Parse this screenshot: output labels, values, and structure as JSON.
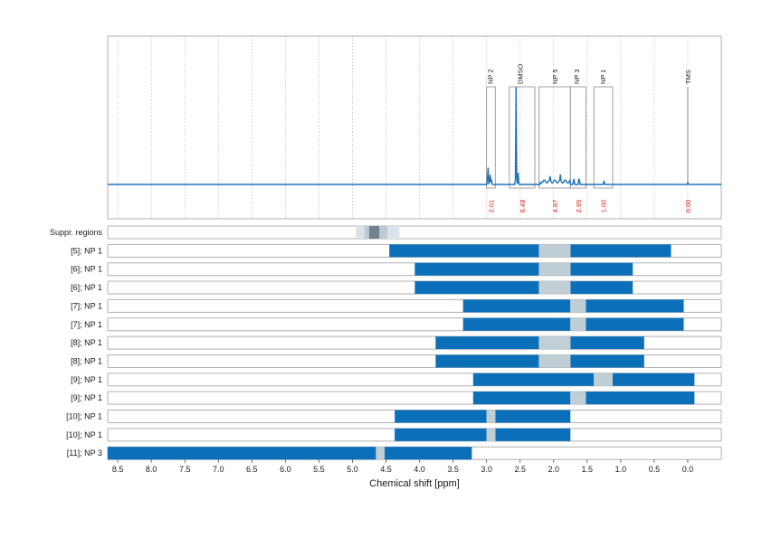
{
  "colors": {
    "spectrum": "#1a72bb",
    "bar": "#0b6fba",
    "suppr_light": "#dbe3ea",
    "suppr_mid": "#bccbd3",
    "suppr_dark": "#6f828e",
    "gap": "#c0ced5",
    "frame": "#b0b0b0",
    "grid": "#bfbfbf",
    "tms_line": "#999999",
    "integral_text": "#e0201a"
  },
  "chart_data": {
    "type": "spectrum_with_range_bars",
    "xlabel": "Chemical shift [ppm]",
    "x_axis_reversed": true,
    "xlim": [
      8.65,
      -0.5
    ],
    "ticks": [
      8.5,
      8.0,
      7.5,
      7.0,
      6.5,
      6.0,
      5.5,
      5.0,
      4.5,
      4.0,
      3.5,
      3.0,
      2.5,
      2.0,
      1.5,
      1.0,
      0.5,
      0.0
    ],
    "tick_labels": [
      "8.5",
      "8.0",
      "7.5",
      "7.0",
      "6.5",
      "6.0",
      "5.5",
      "5.0",
      "4.5",
      "4.0",
      "3.5",
      "3.0",
      "2.5",
      "2.0",
      "1.5",
      "1.0",
      "0.5",
      "0.0"
    ],
    "grid": true,
    "spectrum_peaks": [
      {
        "ppm": 2.98,
        "height": 0.22
      },
      {
        "ppm": 2.95,
        "height": 0.14
      },
      {
        "ppm": 2.93,
        "height": 0.06
      },
      {
        "ppm": 2.56,
        "height": 1.0
      },
      {
        "ppm": 2.53,
        "height": 0.12
      },
      {
        "ppm": 2.05,
        "height": 0.05
      },
      {
        "ppm": 1.9,
        "height": 0.06
      },
      {
        "ppm": 1.7,
        "height": 0.09
      },
      {
        "ppm": 1.62,
        "height": 0.1
      },
      {
        "ppm": 1.25,
        "height": 0.04
      },
      {
        "ppm": 0.0,
        "height": 0.02
      }
    ],
    "peak_annotations": [
      {
        "label": "NP 2",
        "ppm": 2.95,
        "box": [
          3.0,
          2.87
        ],
        "integral": "2.01"
      },
      {
        "label": "DMSO",
        "ppm": 2.5,
        "box": [
          2.66,
          2.28
        ],
        "integral": "6.48"
      },
      {
        "label": "NP 5",
        "ppm": 1.98,
        "box": [
          2.22,
          1.75
        ],
        "integral": "4.87"
      },
      {
        "label": "NP 3",
        "ppm": 1.66,
        "box": [
          1.75,
          1.52
        ],
        "integral": "2.95"
      },
      {
        "label": "NP 1",
        "ppm": 1.27,
        "box": [
          1.4,
          1.12
        ],
        "integral": "1.00"
      },
      {
        "label": "TMS",
        "ppm": 0.0,
        "box": null,
        "integral": "0.00"
      }
    ],
    "suppr_regions": {
      "label": "Suppr. regions",
      "bands": [
        {
          "from": 4.95,
          "to": 4.3,
          "shade": "light"
        },
        {
          "from": 4.82,
          "to": 4.48,
          "shade": "mid"
        },
        {
          "from": 4.75,
          "to": 4.6,
          "shade": "dark"
        }
      ]
    },
    "rows": [
      {
        "label": "[5]; NP 1",
        "segments": [
          [
            4.45,
            2.22
          ],
          [
            1.75,
            0.25
          ]
        ],
        "gaps": [
          [
            2.22,
            1.75
          ]
        ]
      },
      {
        "label": "[6]; NP 1",
        "segments": [
          [
            4.07,
            2.22
          ],
          [
            1.75,
            0.82
          ]
        ],
        "gaps": [
          [
            2.22,
            1.75
          ]
        ]
      },
      {
        "label": "[6]; NP 1",
        "segments": [
          [
            4.07,
            2.22
          ],
          [
            1.75,
            0.82
          ]
        ],
        "gaps": [
          [
            2.22,
            1.75
          ]
        ]
      },
      {
        "label": "[7]; NP 1",
        "segments": [
          [
            3.35,
            1.75
          ],
          [
            1.52,
            0.06
          ]
        ],
        "gaps": [
          [
            1.75,
            1.52
          ]
        ]
      },
      {
        "label": "[7]; NP 1",
        "segments": [
          [
            3.35,
            1.75
          ],
          [
            1.52,
            0.06
          ]
        ],
        "gaps": [
          [
            1.75,
            1.52
          ]
        ]
      },
      {
        "label": "[8]; NP 1",
        "segments": [
          [
            3.76,
            2.22
          ],
          [
            1.75,
            0.65
          ]
        ],
        "gaps": [
          [
            2.22,
            1.75
          ]
        ]
      },
      {
        "label": "[8]; NP 1",
        "segments": [
          [
            3.76,
            2.22
          ],
          [
            1.75,
            0.65
          ]
        ],
        "gaps": [
          [
            2.22,
            1.75
          ]
        ]
      },
      {
        "label": "[9]; NP 1",
        "segments": [
          [
            3.2,
            1.4
          ],
          [
            1.12,
            -0.1
          ]
        ],
        "gaps": [
          [
            1.4,
            1.12
          ]
        ]
      },
      {
        "label": "[9]; NP 1",
        "segments": [
          [
            3.2,
            1.75
          ],
          [
            1.52,
            -0.1
          ]
        ],
        "gaps": [
          [
            1.75,
            1.52
          ]
        ]
      },
      {
        "label": "[10]; NP 1",
        "segments": [
          [
            4.37,
            3.0
          ],
          [
            2.87,
            1.75
          ]
        ],
        "gaps": [
          [
            3.0,
            2.87
          ]
        ]
      },
      {
        "label": "[10]; NP 1",
        "segments": [
          [
            4.37,
            3.0
          ],
          [
            2.87,
            1.75
          ]
        ],
        "gaps": [
          [
            3.0,
            2.87
          ]
        ]
      },
      {
        "label": "[11]; NP 3",
        "segments": [
          [
            8.65,
            4.65
          ],
          [
            4.52,
            3.22
          ]
        ],
        "gaps": [
          [
            4.65,
            4.52
          ]
        ]
      }
    ]
  }
}
